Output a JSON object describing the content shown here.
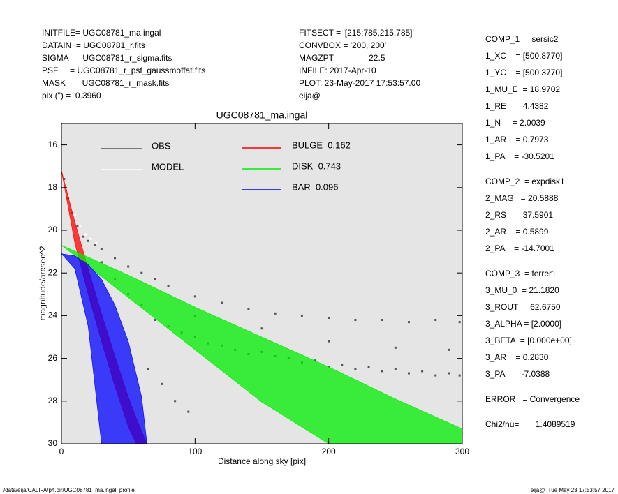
{
  "chart_data": {
    "type": "scatter",
    "title": "UGC08781_ma.ingal",
    "x_label": "Distance along sky [pix]",
    "y_label": "magnitude/arcsec^2",
    "xlim": [
      0,
      300
    ],
    "ylim": [
      30,
      15
    ],
    "xticks": [
      0,
      100,
      200,
      300
    ],
    "yticks": [
      16,
      18,
      20,
      22,
      24,
      26,
      28,
      30
    ],
    "background": "#e5e5e5",
    "series": [
      {
        "name": "OBS",
        "color": "#555555",
        "style": "points",
        "x": [
          2,
          5,
          8,
          12,
          16,
          20,
          25,
          30,
          40,
          50,
          60,
          70,
          80,
          100,
          120,
          140,
          160,
          180,
          200,
          220,
          240,
          260,
          280,
          298,
          30,
          40,
          50,
          60,
          70,
          80,
          90,
          100,
          110,
          120,
          130,
          140,
          150,
          160,
          170,
          180,
          190,
          200,
          210,
          220,
          230,
          240,
          250,
          260,
          270,
          280,
          290,
          298,
          65,
          75,
          85,
          95,
          100,
          150,
          200,
          250,
          290
        ],
        "values": [
          17.6,
          18.5,
          19.2,
          19.8,
          20.3,
          20.5,
          20.7,
          20.9,
          21.3,
          21.7,
          22.0,
          22.3,
          22.6,
          23.1,
          23.4,
          23.7,
          23.9,
          24.0,
          24.1,
          24.2,
          24.2,
          24.3,
          24.2,
          24.3,
          21.5,
          22.3,
          23.0,
          23.5,
          24.2,
          24.5,
          24.8,
          25.0,
          25.3,
          25.4,
          25.6,
          25.8,
          25.7,
          25.9,
          26.0,
          26.2,
          26.1,
          26.4,
          26.3,
          26.5,
          26.4,
          26.6,
          26.5,
          26.7,
          26.6,
          26.8,
          26.7,
          26.8,
          26.5,
          27.2,
          28.0,
          28.5,
          24.0,
          24.6,
          25.2,
          25.5,
          25.6
        ]
      },
      {
        "name": "MODEL",
        "color": "#ffffff",
        "style": "points",
        "x": [
          3,
          6,
          10,
          14,
          18,
          22,
          26
        ],
        "values": [
          17.8,
          18.6,
          19.3,
          19.8,
          20.2,
          20.4,
          20.6
        ]
      },
      {
        "name": "BULGE  0.162",
        "color": "#ff0000",
        "style": "band",
        "x": [
          0,
          10,
          20,
          30,
          40,
          50,
          56,
          64
        ],
        "values": [
          17.2,
          19.6,
          21.8,
          23.9,
          25.9,
          27.8,
          28.8,
          30
        ],
        "values2": [
          17.2,
          20.6,
          23.0,
          25.2,
          27.3,
          29.2,
          30,
          30
        ]
      },
      {
        "name": "DISK  0.743",
        "color": "#00ee00",
        "style": "band",
        "x": [
          0,
          50,
          100,
          150,
          200,
          250,
          300
        ],
        "values": [
          20.7,
          22.1,
          23.6,
          25.0,
          26.4,
          27.9,
          29.3
        ],
        "values2": [
          20.7,
          23.15,
          25.6,
          28.05,
          30,
          30,
          30
        ]
      },
      {
        "name": "BAR  0.096",
        "color": "#0000ff",
        "style": "band",
        "x": [
          0,
          10,
          20,
          30,
          40,
          50,
          60,
          64
        ],
        "values": [
          21.1,
          21.2,
          21.6,
          22.3,
          23.5,
          25.2,
          27.8,
          30
        ],
        "values2": [
          21.1,
          21.8,
          24.5,
          30,
          30,
          30,
          30,
          30
        ]
      }
    ]
  },
  "info_left": [
    "INITFILE= UGC08781_ma.ingal",
    "DATAIN  = UGC08781_r.fits",
    "SIGMA   = UGC08781_r_sigma.fits",
    "PSF     = UGC08781_r_psf_gaussmoffat.fits",
    "MASK    = UGC08781_r_mask.fits",
    "pix (\") =  0.3960"
  ],
  "info_mid": [
    "FITSECT = '[215:785,215:785]'",
    "CONVBOX = '200, 200'",
    "MAGZPT =            22.5",
    "INFILE: 2017-Apr-10",
    "PLOT: 23-May-2017 17:53:57.00",
    "eija@"
  ],
  "params": [
    [
      "COMP_1  = sersic2",
      "1_XC    = [500.8770]",
      "1_YC    = [500.3770]",
      "1_MU_E  = 18.9702",
      "1_RE    = 4.4382",
      "1_N     = 2.0039",
      "1_AR    = 0.7973",
      "1_PA    = -30.5201"
    ],
    [
      "COMP_2  = expdisk1",
      "2_MAG   = 20.5888",
      "2_RS    = 37.5901",
      "2_AR    = 0.5899",
      "2_PA    = -14.7001"
    ],
    [
      "COMP_3  = ferrer1",
      "3_MU_0  = 21.1820",
      "3_ROUT  = 62.6750",
      "3_ALPHA = [2.0000]",
      "3_BETA  = [0.000e+00]",
      "3_AR    = 0.2830",
      "3_PA    = -7.0388"
    ],
    [
      "ERROR   = Convergence"
    ],
    [
      "Chi2/nu=       1.4089519"
    ]
  ],
  "footer_left": "/data/eija/CALIFA/p4.dir/UGC08781_ma.ingal_profile",
  "footer_right": "eija@  Tue May 23 17:53:57 2017"
}
